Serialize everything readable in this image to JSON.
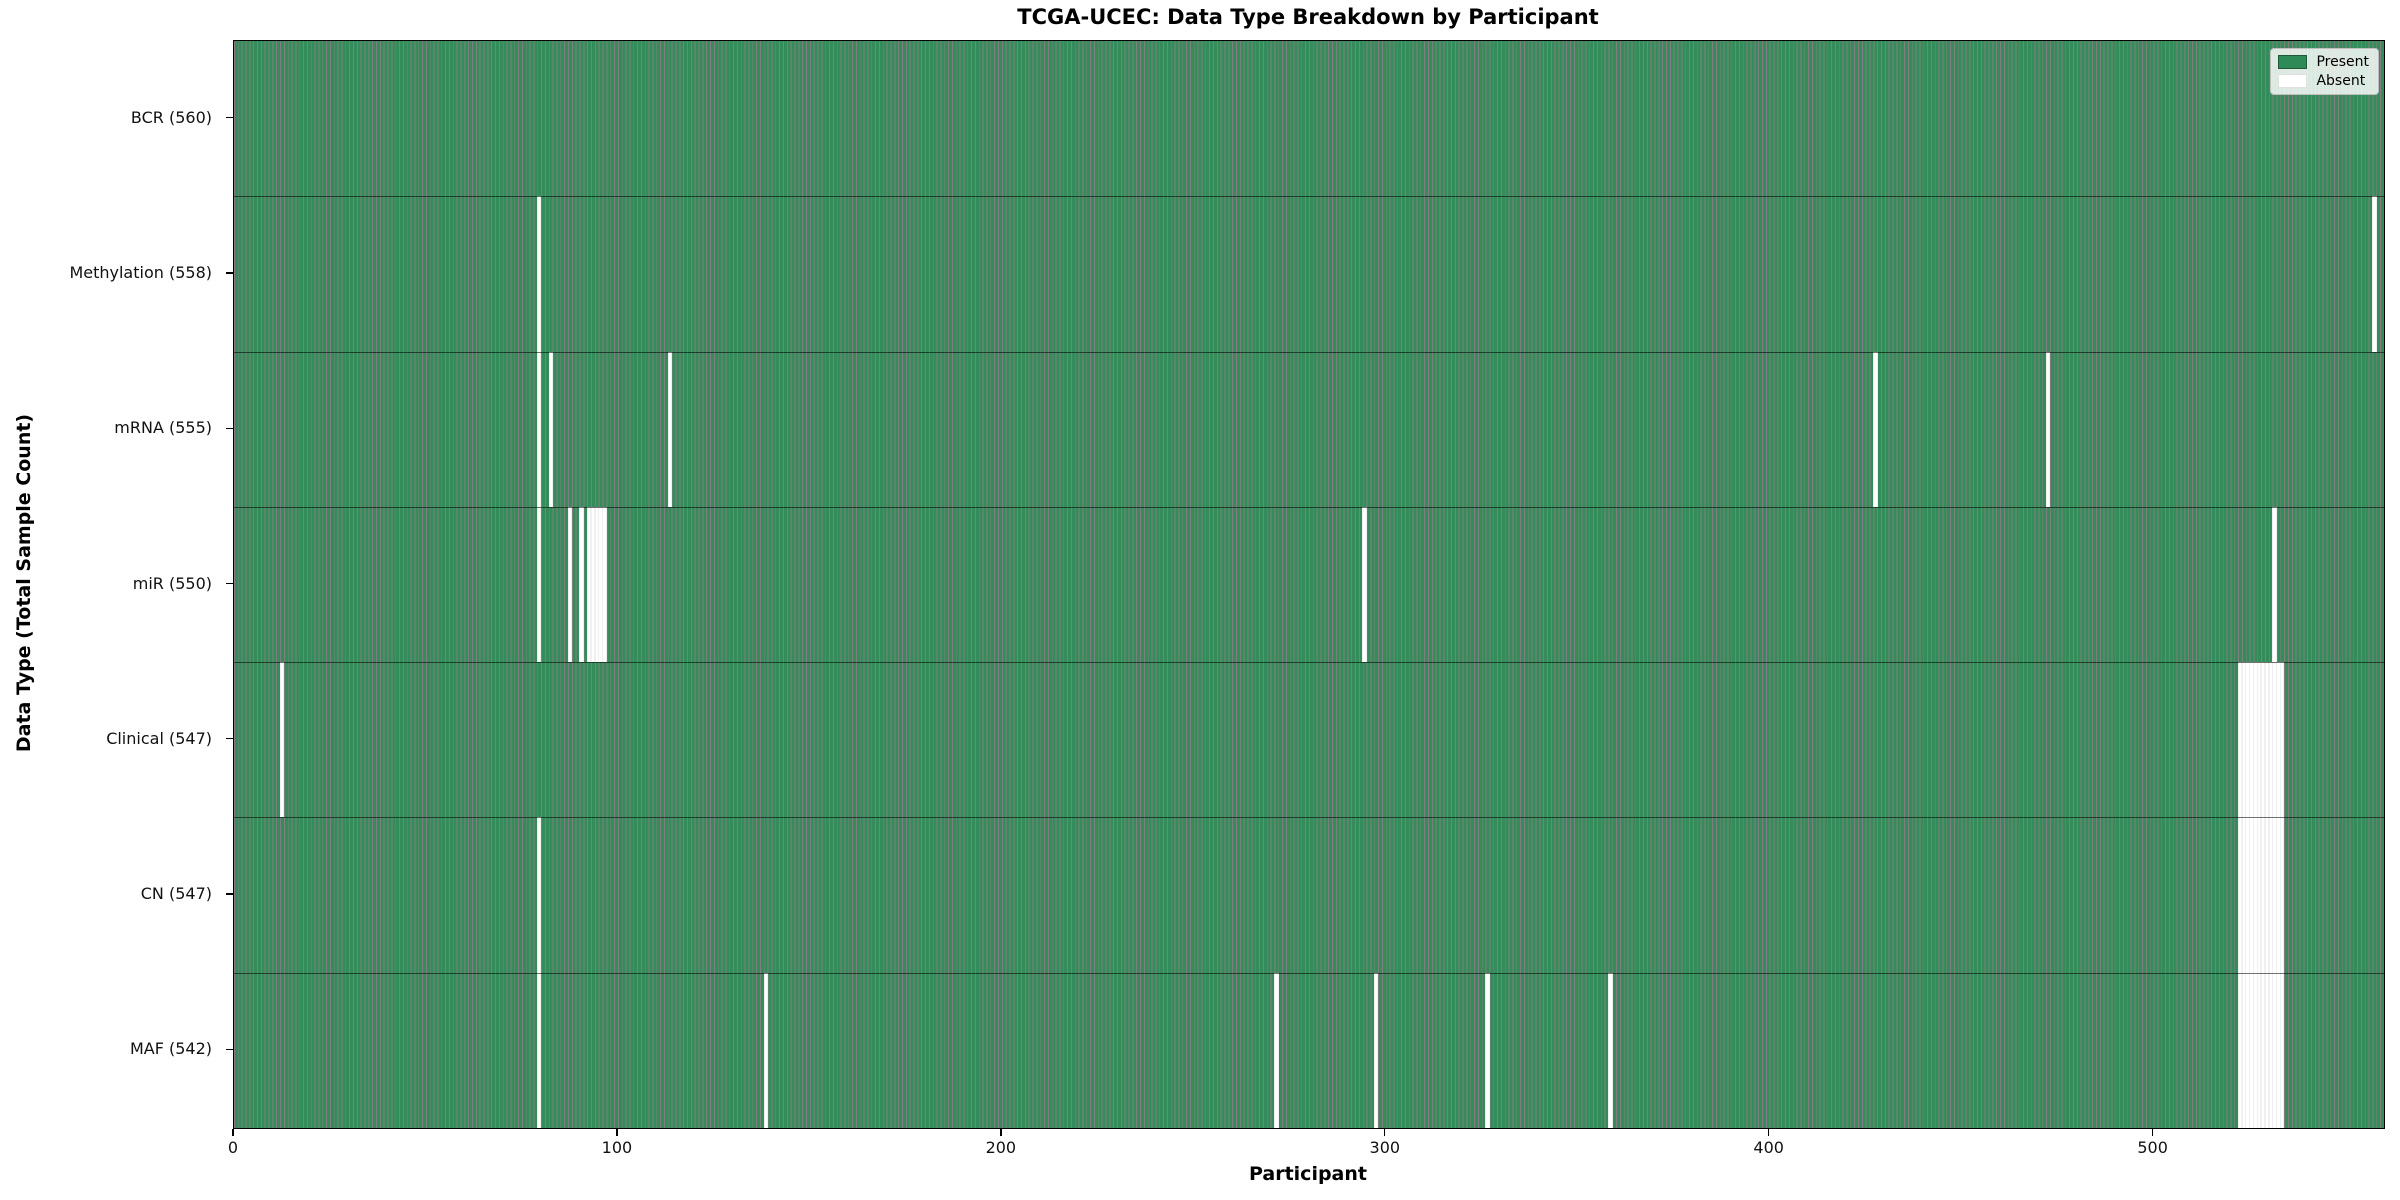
{
  "chart_data": {
    "type": "heatmap",
    "title": "TCGA-UCEC: Data Type Breakdown by Participant",
    "xlabel": "Participant",
    "ylabel": "Data Type (Total Sample Count)",
    "x_ticks": [
      0,
      100,
      200,
      300,
      400,
      500
    ],
    "x_range": [
      0,
      560
    ],
    "n_participants": 560,
    "grid": false,
    "legend_position": "upper right",
    "colors": {
      "present": "#2e8b57",
      "bar_fill": "#348c5a",
      "bar_edge": "rgba(0,0,0,0.5)",
      "absent": "#ffffff"
    },
    "legend": [
      {
        "label": "Present",
        "color": "#2e8b57"
      },
      {
        "label": "Absent",
        "color": "#ffffff"
      }
    ],
    "rows": [
      {
        "data_type": "BCR",
        "label": "BCR (560)",
        "present_count": 560,
        "absent_participants": []
      },
      {
        "data_type": "Methylation",
        "label": "Methylation (558)",
        "present_count": 558,
        "absent_participants": [
          79,
          557
        ]
      },
      {
        "data_type": "mRNA",
        "label": "mRNA (555)",
        "present_count": 555,
        "absent_participants": [
          79,
          82,
          113,
          427,
          472
        ]
      },
      {
        "data_type": "miR",
        "label": "miR (550)",
        "present_count": 550,
        "absent_participants": [
          79,
          87,
          90,
          92,
          93,
          94,
          95,
          96,
          294,
          531
        ]
      },
      {
        "data_type": "Clinical",
        "label": "Clinical (547)",
        "present_count": 547,
        "absent_participants": [
          12,
          522,
          523,
          524,
          525,
          526,
          527,
          528,
          529,
          530,
          531,
          532,
          533
        ]
      },
      {
        "data_type": "CN",
        "label": "CN (547)",
        "present_count": 547,
        "absent_participants": [
          79,
          522,
          523,
          524,
          525,
          526,
          527,
          528,
          529,
          530,
          531,
          532,
          533
        ]
      },
      {
        "data_type": "MAF",
        "label": "MAF (542)",
        "present_count": 542,
        "absent_participants": [
          79,
          138,
          271,
          297,
          326,
          358,
          522,
          523,
          524,
          525,
          526,
          527,
          528,
          529,
          530,
          531,
          532,
          533
        ]
      }
    ]
  }
}
